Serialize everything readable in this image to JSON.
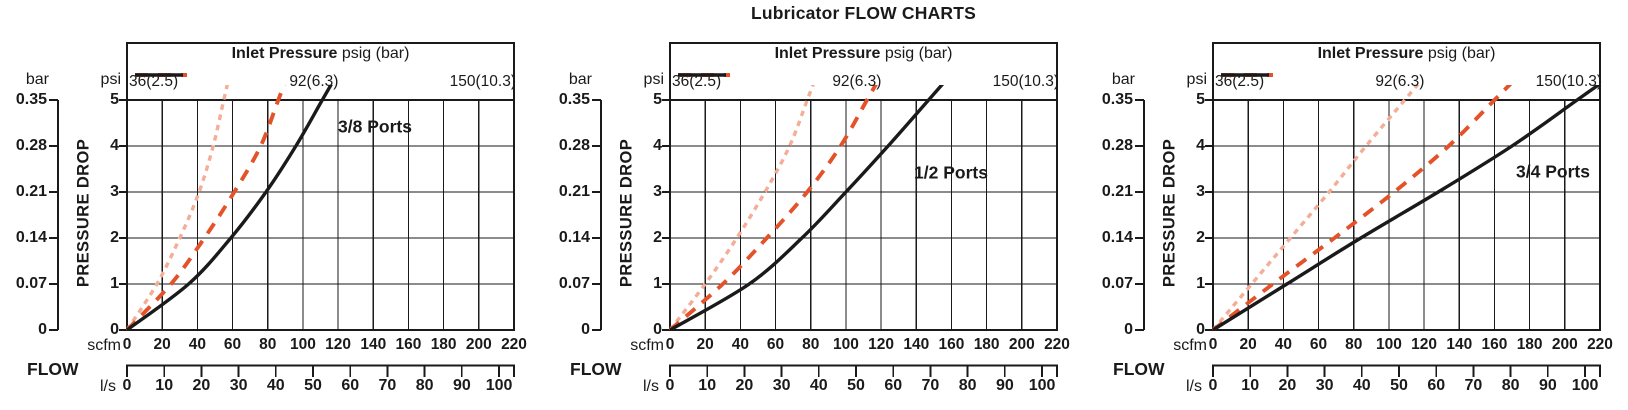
{
  "title": "Lubricator FLOW CHARTS",
  "legend": {
    "title_bold": "Inlet Pressure",
    "title_rest": " psig (bar)",
    "series": [
      {
        "label": "36(2.5)",
        "color": "#F4AD96",
        "style": "dotted"
      },
      {
        "label": "92(6.3)",
        "color": "#E4522A",
        "style": "dashed"
      },
      {
        "label": "150(10.3)",
        "color": "#1A1A1A",
        "style": "solid"
      }
    ]
  },
  "axes": {
    "y_left_unit": "bar",
    "y_left_ticks": [
      "0.35",
      "0.28",
      "0.21",
      "0.14",
      "0.07",
      "0"
    ],
    "y_right_unit": "psi",
    "y_right_ticks": [
      "5",
      "4",
      "3",
      "2",
      "1",
      "0"
    ],
    "y_title": "PRESSURE DROP",
    "x_unit_top": "scfm",
    "x_ticks_scfm": [
      0,
      20,
      40,
      60,
      80,
      100,
      120,
      140,
      160,
      180,
      200,
      220
    ],
    "x_title": "FLOW",
    "x_unit_bottom": "l/s",
    "x_ticks_ls": [
      0,
      10,
      20,
      30,
      40,
      50,
      60,
      70,
      80,
      90,
      100
    ]
  },
  "chart_data": [
    {
      "type": "line",
      "title": "3/8 Ports",
      "xlabel": "FLOW (scfm top scale, l/s bottom scale; 100 l/s ~ 212 scfm)",
      "ylabel": "PRESSURE DROP (psi left-inner scale, bar outer scale; 1 psi = 0.07 bar)",
      "xlim": [
        0,
        220
      ],
      "ylim": [
        0,
        5
      ],
      "grid": true,
      "legend_position": "top",
      "series": [
        {
          "name": "36(2.5)",
          "psi": [
            0,
            1,
            2,
            3,
            4,
            5
          ],
          "scfm": [
            0,
            17,
            30,
            41,
            49,
            55
          ]
        },
        {
          "name": "92(6.3)",
          "psi": [
            0,
            1,
            2,
            3,
            4,
            5
          ],
          "scfm": [
            0,
            25,
            44,
            61,
            76,
            86
          ]
        },
        {
          "name": "150(10.3)",
          "psi": [
            0,
            1,
            2,
            3,
            4,
            5
          ],
          "scfm": [
            0,
            35,
            59,
            79,
            96,
            111
          ]
        }
      ]
    },
    {
      "type": "line",
      "title": "1/2 Ports",
      "xlabel": "FLOW (scfm top scale, l/s bottom scale; 100 l/s ~ 212 scfm)",
      "ylabel": "PRESSURE DROP (psi left-inner scale, bar outer scale; 1 psi = 0.07 bar)",
      "xlim": [
        0,
        220
      ],
      "ylim": [
        0,
        5
      ],
      "grid": true,
      "legend_position": "top",
      "series": [
        {
          "name": "36(2.5)",
          "psi": [
            0,
            1,
            2,
            3,
            4,
            5
          ],
          "scfm": [
            0,
            20,
            38,
            54,
            68,
            78
          ]
        },
        {
          "name": "92(6.3)",
          "psi": [
            0,
            1,
            2,
            3,
            4,
            5
          ],
          "scfm": [
            0,
            30,
            55,
            78,
            97,
            112
          ]
        },
        {
          "name": "150(10.3)",
          "psi": [
            0,
            1,
            2,
            3,
            4,
            5
          ],
          "scfm": [
            0,
            45,
            75,
            100,
            124,
            147
          ]
        }
      ]
    },
    {
      "type": "line",
      "title": "3/4 Ports",
      "xlabel": "FLOW (scfm top scale, l/s bottom scale; 100 l/s ~ 212 scfm)",
      "ylabel": "PRESSURE DROP (psi left-inner scale, bar outer scale; 1 psi = 0.07 bar)",
      "xlim": [
        0,
        220
      ],
      "ylim": [
        0,
        5
      ],
      "grid": true,
      "legend_position": "top",
      "series": [
        {
          "name": "36(2.5)",
          "psi": [
            0,
            1,
            2,
            3,
            4,
            5
          ],
          "scfm": [
            0,
            22,
            44,
            66,
            87,
            109
          ]
        },
        {
          "name": "92(6.3)",
          "psi": [
            0,
            1,
            2,
            3,
            4,
            5
          ],
          "scfm": [
            0,
            34,
            69,
            103,
            134,
            160
          ]
        },
        {
          "name": "150(10.3)",
          "psi": [
            0,
            1,
            2,
            3,
            4,
            5
          ],
          "scfm": [
            0,
            42,
            84,
            128,
            170,
            207
          ]
        }
      ]
    }
  ],
  "line_color_black": "#1A1A1A"
}
